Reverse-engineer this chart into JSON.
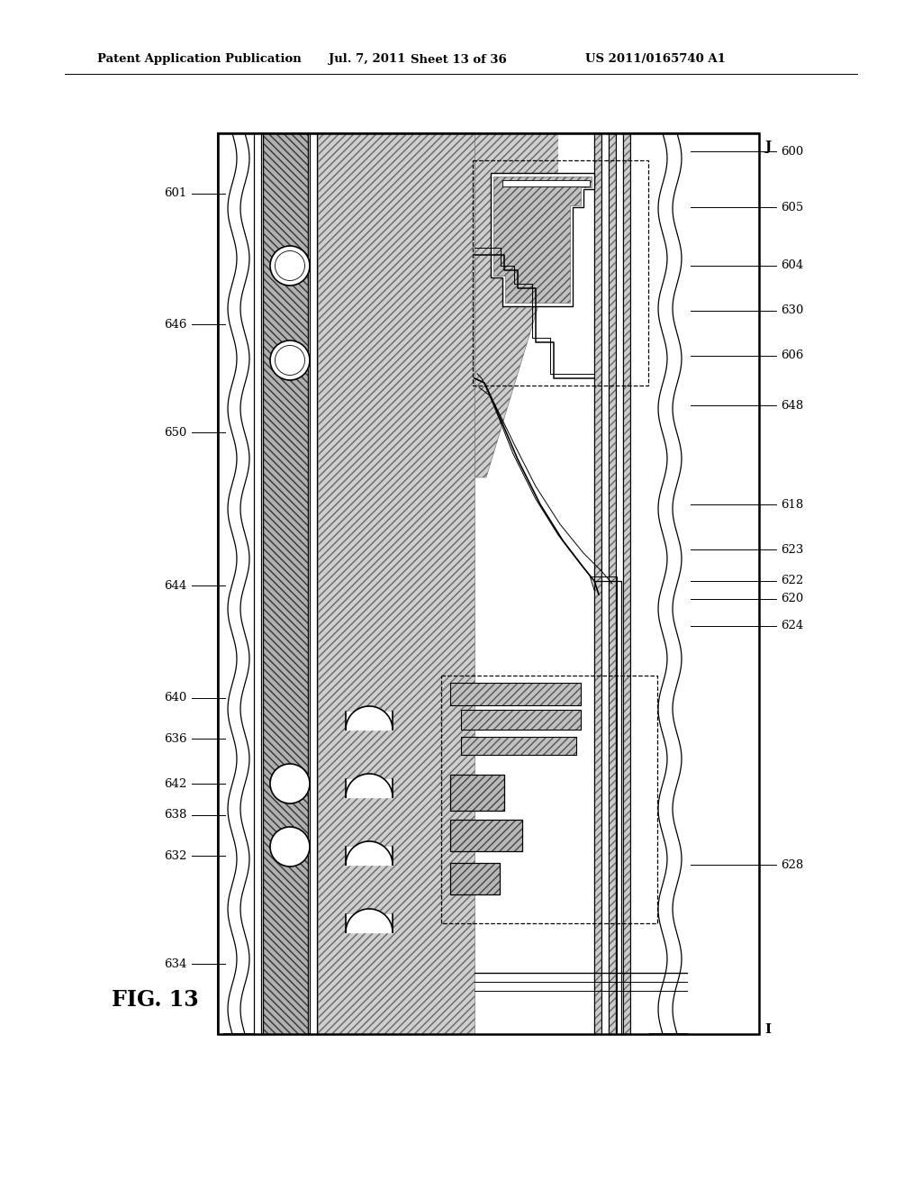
{
  "header_left": "Patent Application Publication",
  "header_mid": "Jul. 7, 2011",
  "header_mid2": "Sheet 13 of 36",
  "header_right": "US 2011/0165740 A1",
  "figure_label": "FIG. 13",
  "bg": "#ffffff",
  "BL": 242,
  "BR": 843,
  "BT": 148,
  "BB": 1148,
  "labels_left": [
    [
      "601",
      185,
      215
    ],
    [
      "646",
      198,
      360
    ],
    [
      "650",
      185,
      480
    ],
    [
      "644",
      198,
      650
    ],
    [
      "640",
      198,
      775
    ],
    [
      "636",
      198,
      820
    ],
    [
      "642",
      198,
      870
    ],
    [
      "638",
      198,
      905
    ],
    [
      "632",
      198,
      950
    ],
    [
      "634",
      198,
      1070
    ]
  ],
  "labels_right": [
    [
      "600",
      875,
      168
    ],
    [
      "605",
      875,
      230
    ],
    [
      "604",
      875,
      295
    ],
    [
      "630",
      875,
      345
    ],
    [
      "606",
      875,
      395
    ],
    [
      "648",
      875,
      450
    ],
    [
      "618",
      875,
      560
    ],
    [
      "623",
      875,
      610
    ],
    [
      "622",
      875,
      645
    ],
    [
      "620",
      875,
      665
    ],
    [
      "624",
      875,
      695
    ],
    [
      "628",
      875,
      960
    ]
  ]
}
